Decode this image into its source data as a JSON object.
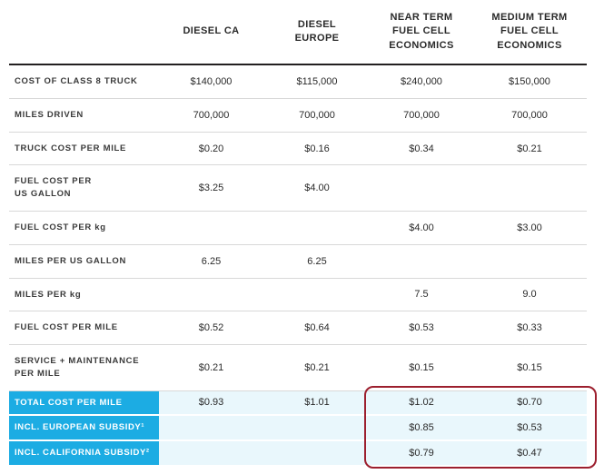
{
  "title": "Class 8 truck cost-per-mile comparison table",
  "chart_data": {
    "type": "table",
    "columns": [
      "DIESEL CA",
      "DIESEL\nEUROPE",
      "NEAR TERM\nFUEL CELL\nECONOMICS",
      "MEDIUM TERM\nFUEL CELL\nECONOMICS"
    ],
    "rows": [
      {
        "label": "COST OF CLASS 8 TRUCK",
        "values": [
          "$140,000",
          "$115,000",
          "$240,000",
          "$150,000"
        ],
        "highlight": false
      },
      {
        "label": "MILES DRIVEN",
        "values": [
          "700,000",
          "700,000",
          "700,000",
          "700,000"
        ],
        "highlight": false
      },
      {
        "label": "TRUCK COST PER MILE",
        "values": [
          "$0.20",
          "$0.16",
          "$0.34",
          "$0.21"
        ],
        "highlight": false
      },
      {
        "label": "FUEL COST PER\nUS GALLON",
        "values": [
          "$3.25",
          "$4.00",
          "",
          ""
        ],
        "highlight": false
      },
      {
        "label": "FUEL COST PER kg",
        "values": [
          "",
          "",
          "$4.00",
          "$3.00"
        ],
        "highlight": false
      },
      {
        "label": "MILES PER US GALLON",
        "values": [
          "6.25",
          "6.25",
          "",
          ""
        ],
        "highlight": false
      },
      {
        "label": "MILES PER kg",
        "values": [
          "",
          "",
          "7.5",
          "9.0"
        ],
        "highlight": false
      },
      {
        "label": "FUEL COST PER MILE",
        "values": [
          "$0.52",
          "$0.64",
          "$0.53",
          "$0.33"
        ],
        "highlight": false
      },
      {
        "label": "SERVICE + MAINTENANCE\nPER MILE",
        "values": [
          "$0.21",
          "$0.21",
          "$0.15",
          "$0.15"
        ],
        "highlight": false
      },
      {
        "label": "TOTAL COST PER MILE",
        "values": [
          "$0.93",
          "$1.01",
          "$1.02",
          "$0.70"
        ],
        "highlight": true
      },
      {
        "label": "INCL. EUROPEAN SUBSIDY¹",
        "values": [
          "",
          "",
          "$0.85",
          "$0.53"
        ],
        "highlight": true
      },
      {
        "label": "INCL. CALIFORNIA SUBSIDY²",
        "values": [
          "",
          "",
          "$0.79",
          "$0.47"
        ],
        "highlight": true
      }
    ],
    "annotations": {
      "highlight_box": "dark red rounded rectangle around the NEAR TERM and MEDIUM TERM fuel cell values of the bottom three rows"
    },
    "colors": {
      "accent_cyan": "#1cace3",
      "highlight_row_bg": "#e9f7fc",
      "highlight_box_red": "#9c1f2e",
      "header_rule": "#231f20",
      "row_rule": "#d8d8d8",
      "text_dark": "#2a2a2a"
    },
    "layout": {
      "grid": "horizontal row rules only",
      "header_position": "top"
    }
  }
}
